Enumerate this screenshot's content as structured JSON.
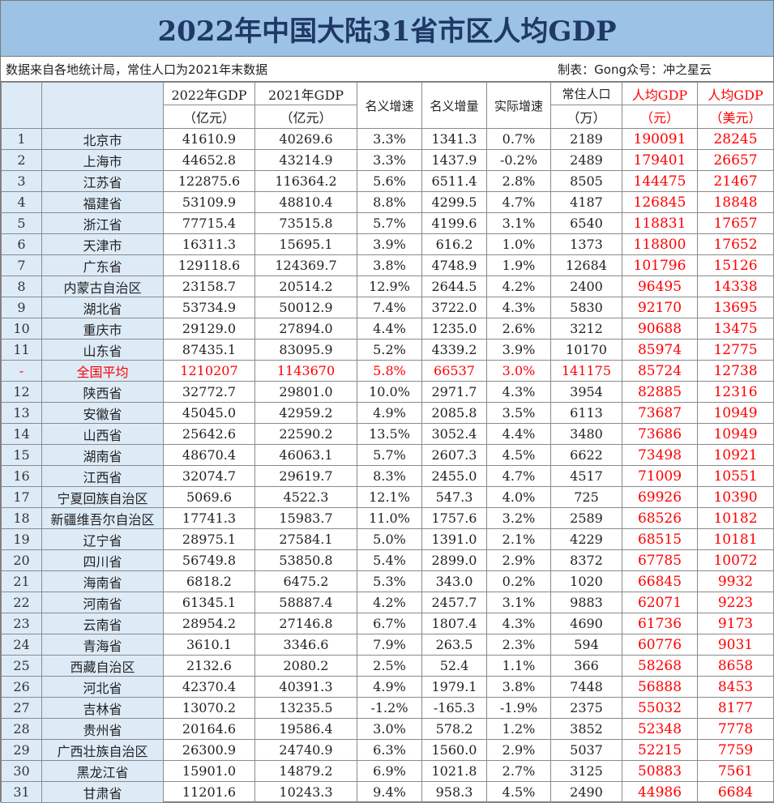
{
  "title": "2022年中国大陆31省市区人均GDP",
  "source_left": "数据来自各地统计局，常住人口为2021年末数据",
  "source_right": "制表：Gong众号：冲之星云",
  "headers": {
    "gdp2022": [
      "2022年GDP",
      "（亿元）"
    ],
    "gdp2021": [
      "2021年GDP",
      "（亿元）"
    ],
    "nominal_rate": "名义增速",
    "nominal_inc": "名义增量",
    "real_rate": "实际增速",
    "pop": [
      "常住人口",
      "（万）"
    ],
    "pc_cny": [
      "人均GDP",
      "（元）"
    ],
    "pc_usd": [
      "人均GDP",
      "（美元）"
    ]
  },
  "colors": {
    "title_bg": "#9cc2e5",
    "title_text": "#1f3864",
    "first_cols_bg": "#ddebf7",
    "highlight": "#ff0000"
  },
  "rows": [
    [
      "1",
      "北京市",
      "41610.9",
      "40269.6",
      "3.3%",
      "1341.3",
      "0.7%",
      "2189",
      "190091",
      "28245"
    ],
    [
      "2",
      "上海市",
      "44652.8",
      "43214.9",
      "3.3%",
      "1437.9",
      "-0.2%",
      "2489",
      "179401",
      "26657"
    ],
    [
      "3",
      "江苏省",
      "122875.6",
      "116364.2",
      "5.6%",
      "6511.4",
      "2.8%",
      "8505",
      "144475",
      "21467"
    ],
    [
      "4",
      "福建省",
      "53109.9",
      "48810.4",
      "8.8%",
      "4299.5",
      "4.7%",
      "4187",
      "126845",
      "18848"
    ],
    [
      "5",
      "浙江省",
      "77715.4",
      "73515.8",
      "5.7%",
      "4199.6",
      "3.1%",
      "6540",
      "118831",
      "17657"
    ],
    [
      "6",
      "天津市",
      "16311.3",
      "15695.1",
      "3.9%",
      "616.2",
      "1.0%",
      "1373",
      "118800",
      "17652"
    ],
    [
      "7",
      "广东省",
      "129118.6",
      "124369.7",
      "3.8%",
      "4748.9",
      "1.9%",
      "12684",
      "101796",
      "15126"
    ],
    [
      "8",
      "内蒙古自治区",
      "23158.7",
      "20514.2",
      "12.9%",
      "2644.5",
      "4.2%",
      "2400",
      "96495",
      "14338"
    ],
    [
      "9",
      "湖北省",
      "53734.9",
      "50012.9",
      "7.4%",
      "3722.0",
      "4.3%",
      "5830",
      "92170",
      "13695"
    ],
    [
      "10",
      "重庆市",
      "29129.0",
      "27894.0",
      "4.4%",
      "1235.0",
      "2.6%",
      "3212",
      "90688",
      "13475"
    ],
    [
      "11",
      "山东省",
      "87435.1",
      "83095.9",
      "5.2%",
      "4339.2",
      "3.9%",
      "10170",
      "85974",
      "12775"
    ],
    [
      "-",
      "全国平均",
      "1210207",
      "1143670",
      "5.8%",
      "66537",
      "3.0%",
      "141175",
      "85724",
      "12738"
    ],
    [
      "12",
      "陕西省",
      "32772.7",
      "29801.0",
      "10.0%",
      "2971.7",
      "4.3%",
      "3954",
      "82885",
      "12316"
    ],
    [
      "13",
      "安徽省",
      "45045.0",
      "42959.2",
      "4.9%",
      "2085.8",
      "3.5%",
      "6113",
      "73687",
      "10949"
    ],
    [
      "14",
      "山西省",
      "25642.6",
      "22590.2",
      "13.5%",
      "3052.4",
      "4.4%",
      "3480",
      "73686",
      "10949"
    ],
    [
      "15",
      "湖南省",
      "48670.4",
      "46063.1",
      "5.7%",
      "2607.3",
      "4.5%",
      "6622",
      "73498",
      "10921"
    ],
    [
      "16",
      "江西省",
      "32074.7",
      "29619.7",
      "8.3%",
      "2455.0",
      "4.7%",
      "4517",
      "71009",
      "10551"
    ],
    [
      "17",
      "宁夏回族自治区",
      "5069.6",
      "4522.3",
      "12.1%",
      "547.3",
      "4.0%",
      "725",
      "69926",
      "10390"
    ],
    [
      "18",
      "新疆维吾尔自治区",
      "17741.3",
      "15983.7",
      "11.0%",
      "1757.6",
      "3.2%",
      "2589",
      "68526",
      "10182"
    ],
    [
      "19",
      "辽宁省",
      "28975.1",
      "27584.1",
      "5.0%",
      "1391.0",
      "2.1%",
      "4229",
      "68515",
      "10181"
    ],
    [
      "20",
      "四川省",
      "56749.8",
      "53850.8",
      "5.4%",
      "2899.0",
      "2.9%",
      "8372",
      "67785",
      "10072"
    ],
    [
      "21",
      "海南省",
      "6818.2",
      "6475.2",
      "5.3%",
      "343.0",
      "0.2%",
      "1020",
      "66845",
      "9932"
    ],
    [
      "22",
      "河南省",
      "61345.1",
      "58887.4",
      "4.2%",
      "2457.7",
      "3.1%",
      "9883",
      "62071",
      "9223"
    ],
    [
      "23",
      "云南省",
      "28954.2",
      "27146.8",
      "6.7%",
      "1807.4",
      "4.3%",
      "4690",
      "61736",
      "9173"
    ],
    [
      "24",
      "青海省",
      "3610.1",
      "3346.6",
      "7.9%",
      "263.5",
      "2.3%",
      "594",
      "60776",
      "9031"
    ],
    [
      "25",
      "西藏自治区",
      "2132.6",
      "2080.2",
      "2.5%",
      "52.4",
      "1.1%",
      "366",
      "58268",
      "8658"
    ],
    [
      "26",
      "河北省",
      "42370.4",
      "40391.3",
      "4.9%",
      "1979.1",
      "3.8%",
      "7448",
      "56888",
      "8453"
    ],
    [
      "27",
      "吉林省",
      "13070.2",
      "13235.5",
      "-1.2%",
      "-165.3",
      "-1.9%",
      "2375",
      "55032",
      "8177"
    ],
    [
      "28",
      "贵州省",
      "20164.6",
      "19586.4",
      "3.0%",
      "578.2",
      "1.2%",
      "3852",
      "52348",
      "7778"
    ],
    [
      "29",
      "广西壮族自治区",
      "26300.9",
      "24740.9",
      "6.3%",
      "1560.0",
      "2.9%",
      "5037",
      "52215",
      "7759"
    ],
    [
      "30",
      "黑龙江省",
      "15901.0",
      "14879.2",
      "6.9%",
      "1021.8",
      "2.7%",
      "3125",
      "50883",
      "7561"
    ],
    [
      "31",
      "甘肃省",
      "11201.6",
      "10243.3",
      "9.4%",
      "958.3",
      "4.5%",
      "2490",
      "44986",
      "6684"
    ]
  ]
}
